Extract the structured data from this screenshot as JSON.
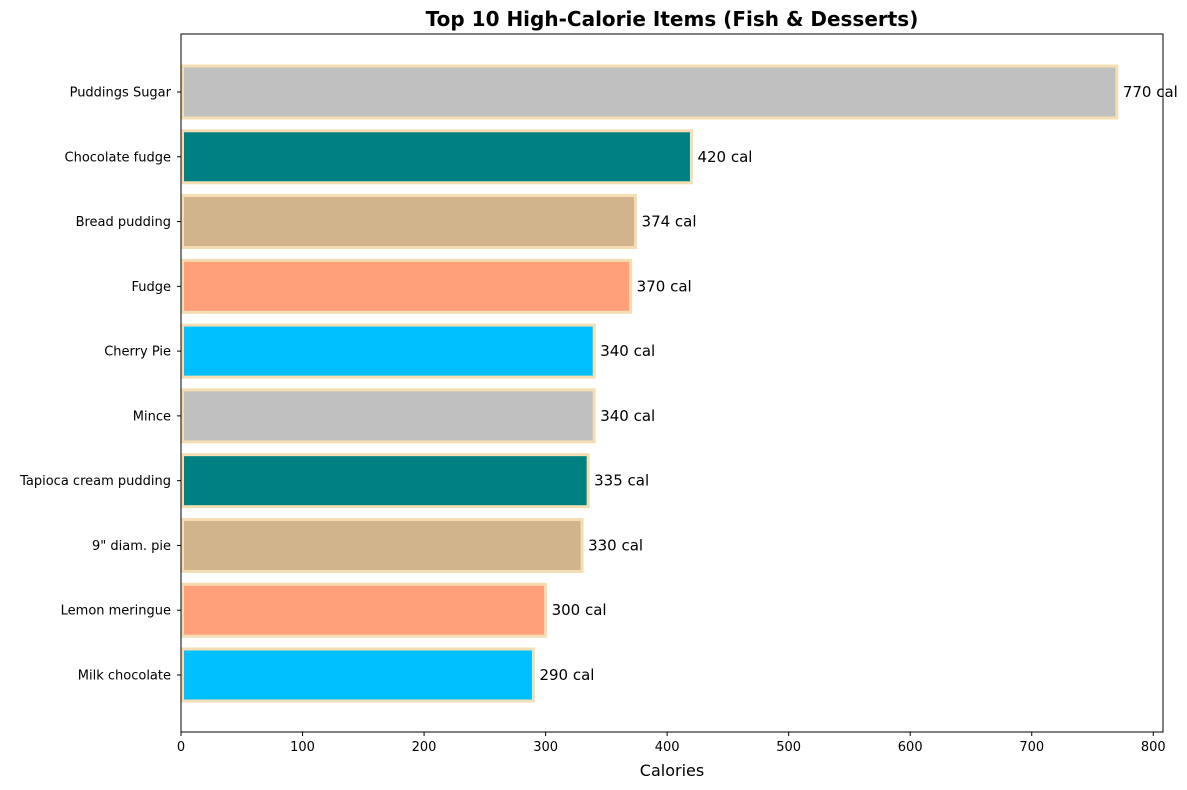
{
  "chart_data": {
    "type": "bar",
    "orientation": "horizontal",
    "title": "Top 10 High-Calorie Items (Fish & Desserts)",
    "xlabel": "Calories",
    "ylabel": "",
    "xlim": [
      0,
      808
    ],
    "xticks": [
      0,
      100,
      200,
      300,
      400,
      500,
      600,
      700,
      800
    ],
    "grid": false,
    "legend": "none",
    "value_suffix": " cal",
    "bar_edge_color": "#f5deb3",
    "categories": [
      "Puddings Sugar",
      "Chocolate fudge",
      "Bread pudding",
      "Fudge",
      "Cherry Pie",
      "Mince",
      "Tapioca cream pudding",
      "9\" diam. pie",
      "Lemon meringue",
      "Milk chocolate"
    ],
    "values": [
      770,
      420,
      374,
      370,
      340,
      340,
      335,
      330,
      300,
      290
    ],
    "data_labels": [
      "770 cal",
      "420 cal",
      "374 cal",
      "370 cal",
      "340 cal",
      "340 cal",
      "335 cal",
      "330 cal",
      "300 cal",
      "290 cal"
    ],
    "colors": [
      "#c0c0c0",
      "#008080",
      "#d2b48c",
      "#ffa07a",
      "#00bfff",
      "#c0c0c0",
      "#008080",
      "#d2b48c",
      "#ffa07a",
      "#00bfff"
    ]
  }
}
